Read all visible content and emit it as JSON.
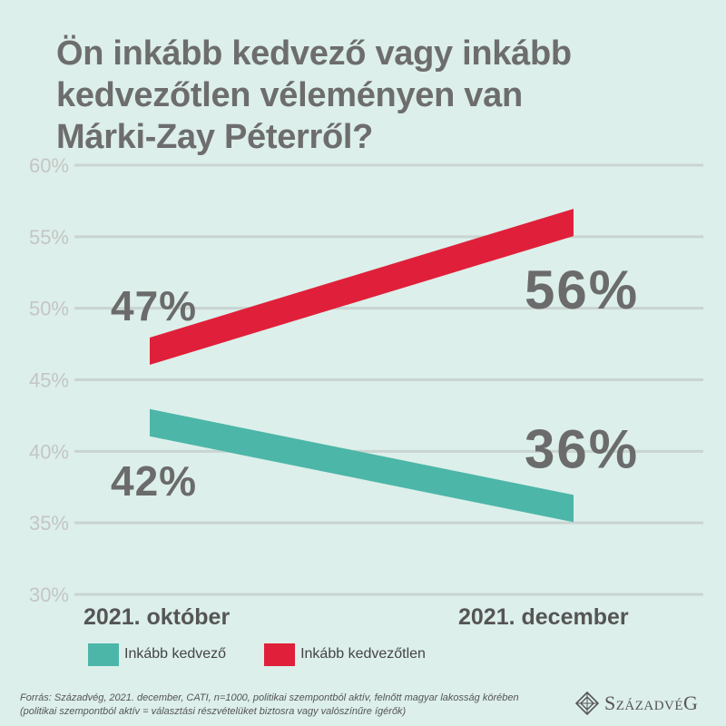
{
  "title_lines": [
    "Ön inkább kedvező vagy inkább",
    "kedvezőtlen véleményen van",
    "Márki-Zay Péterről?"
  ],
  "chart_data": {
    "type": "line",
    "title": "Ön inkább kedvező vagy inkább kedvezőtlen véleményen van Márki-Zay Péterről?",
    "categories": [
      "2021. október",
      "2021. december"
    ],
    "series": [
      {
        "name": "Inkább kedvező",
        "values": [
          42,
          36
        ],
        "labels": [
          "42%",
          "36%"
        ],
        "color": "#4cb6a8"
      },
      {
        "name": "Inkább kedvezőtlen",
        "values": [
          47,
          56
        ],
        "labels": [
          "47%",
          "56%"
        ],
        "color": "#e0203a"
      }
    ],
    "y_ticks": [
      {
        "value": 30,
        "label": "30%"
      },
      {
        "value": 35,
        "label": "35%"
      },
      {
        "value": 40,
        "label": "40%"
      },
      {
        "value": 45,
        "label": "45%"
      },
      {
        "value": 50,
        "label": "50%"
      },
      {
        "value": 55,
        "label": "55%"
      },
      {
        "value": 60,
        "label": "60%"
      }
    ],
    "ylim": [
      30,
      60
    ],
    "grid": true,
    "legend_position": "bottom-left",
    "gridline_color": "#c9d4d1",
    "tick_color": "#c5c5c5"
  },
  "source_lines": [
    "Forrás: Századvég, 2021. december, CATI, n=1000, politikai szempontból aktív, felnőtt magyar lakosság körében",
    "(politikai szempontból aktív = választási részvételüket biztosra vagy valószínűre ígérők)"
  ],
  "logo": {
    "text": "SzázadvéG",
    "icon": "diamond-emblem-icon"
  },
  "colors": {
    "background": "#dcefea",
    "text": "#6d6d6d"
  }
}
